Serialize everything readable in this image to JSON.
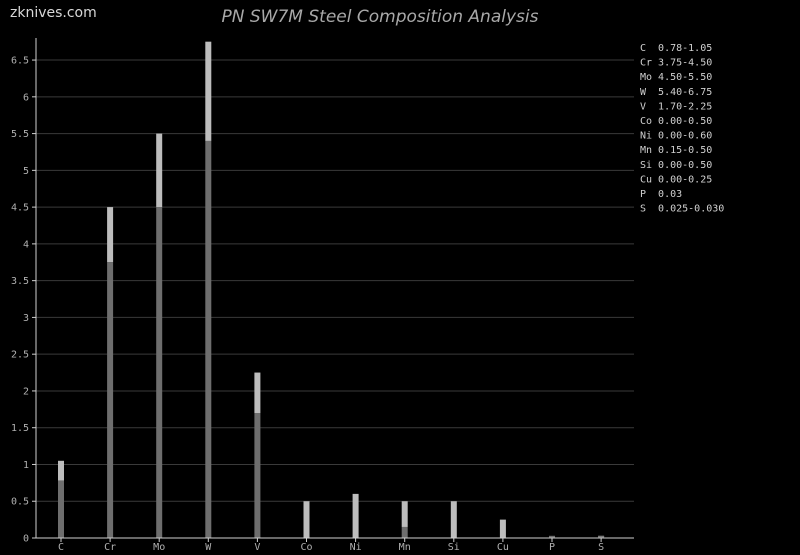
{
  "watermark": "zknives.com",
  "chart_data": {
    "type": "bar",
    "title": "PN SW7M Steel Composition Analysis",
    "xlabel": "",
    "ylabel": "",
    "ylim": [
      0,
      6.8
    ],
    "yticks": [
      0,
      0.5,
      1,
      1.5,
      2,
      2.5,
      3,
      3.5,
      4,
      4.5,
      5,
      5.5,
      6,
      6.5
    ],
    "ytick_labels": [
      "0",
      "0.5",
      "1",
      "1.5",
      "2",
      "2.5",
      "3",
      "3.5",
      "4",
      "4.5",
      "5",
      "5.5",
      "6",
      "6.5"
    ],
    "grid": true,
    "legend_position": "right",
    "categories": [
      "C",
      "Cr",
      "Mo",
      "W",
      "V",
      "Co",
      "Ni",
      "Mn",
      "Si",
      "Cu",
      "P",
      "S"
    ],
    "min_values": [
      0.78,
      3.75,
      4.5,
      5.4,
      1.7,
      0,
      0,
      0.15,
      0,
      0,
      0.03,
      0.025
    ],
    "max_values": [
      1.05,
      4.5,
      5.5,
      6.75,
      2.25,
      0.5,
      0.6,
      0.5,
      0.5,
      0.25,
      0.03,
      0.03
    ],
    "legend": [
      "C  0.78-1.05",
      "Cr 3.75-4.50",
      "Mo 4.50-5.50",
      "W  5.40-6.75",
      "V  1.70-2.25",
      "Co 0.00-0.50",
      "Ni 0.00-0.60",
      "Mn 0.15-0.50",
      "Si 0.00-0.50",
      "Cu 0.00-0.25",
      "P  0.03",
      "S  0.025-0.030"
    ],
    "colors": {
      "min_bar": "#6e6e6e",
      "range_bar": "#bdbdbd",
      "grid": "#3a3a3a",
      "axis": "#cfcfcf"
    }
  }
}
